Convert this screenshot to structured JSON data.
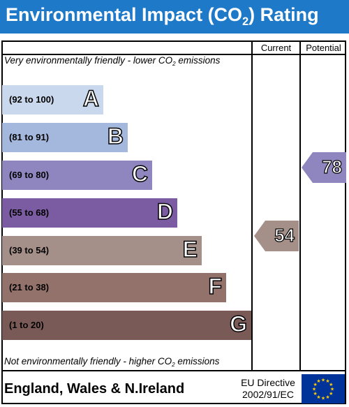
{
  "title_main": "Environmental Impact (CO",
  "title_sub": "2",
  "title_end": ") Rating",
  "columns": {
    "current": "Current",
    "potential": "Potential"
  },
  "top_note": {
    "a": "Very environmentally friendly - lower CO",
    "sub": "2",
    "b": " emissions"
  },
  "bottom_note": {
    "a": "Not environmentally friendly - higher CO",
    "sub": "2",
    "b": " emissions"
  },
  "bands": [
    {
      "letter": "A",
      "range": "(92 to 100)",
      "color": "#c9d8ec"
    },
    {
      "letter": "B",
      "range": "(81 to 91)",
      "color": "#a4b8de"
    },
    {
      "letter": "C",
      "range": "(69 to 80)",
      "color": "#8f86c0"
    },
    {
      "letter": "D",
      "range": "(55 to 68)",
      "color": "#7b5ba1"
    },
    {
      "letter": "E",
      "range": "(39 to 54)",
      "color": "#a58f89"
    },
    {
      "letter": "F",
      "range": "(21 to 38)",
      "color": "#94726c"
    },
    {
      "letter": "G",
      "range": "(1 to 20)",
      "color": "#7a5a57"
    }
  ],
  "current": {
    "value": "54",
    "band": "E",
    "color": "#a58f89"
  },
  "potential": {
    "value": "78",
    "band": "C",
    "color": "#8f86c0"
  },
  "footer": {
    "region": "England, Wales & N.Ireland",
    "directive_line1": "EU Directive",
    "directive_line2": "2002/91/EC"
  },
  "flag_icon": "eu-flag-icon"
}
